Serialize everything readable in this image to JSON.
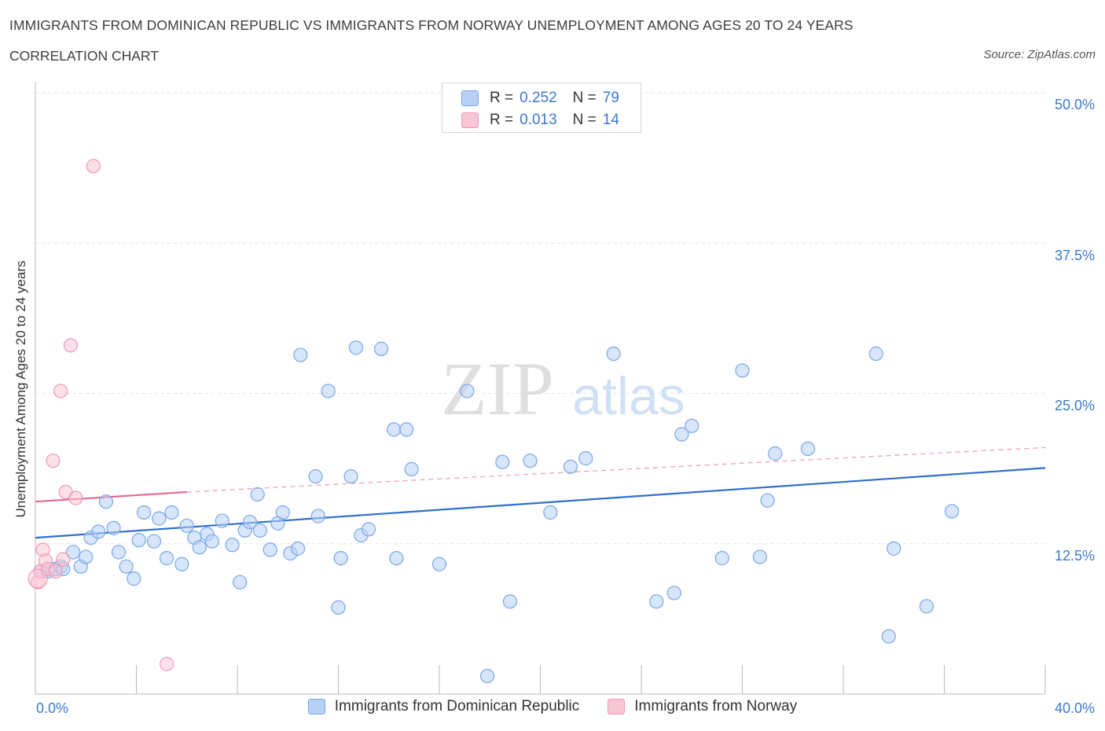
{
  "header": {
    "title": "IMMIGRANTS FROM DOMINICAN REPUBLIC VS IMMIGRANTS FROM NORWAY UNEMPLOYMENT AMONG AGES 20 TO 24 YEARS",
    "subtitle": "CORRELATION CHART",
    "source": "Source: ZipAtlas.com"
  },
  "watermark": {
    "zip": "ZIP",
    "atlas": "atlas"
  },
  "legend": {
    "r_label": "R =",
    "n_label": "N =",
    "rows": [
      {
        "r": "0.252",
        "n": "79",
        "fill": "#b7d1f5",
        "stroke": "#7aa6e6"
      },
      {
        "r": "0.013",
        "n": "14",
        "fill": "#f8c6d4",
        "stroke": "#ee9ab4"
      }
    ]
  },
  "axis": {
    "ylabel": "Unemployment Among Ages 20 to 24 years",
    "x_min_label": "0.0%",
    "x_max_label": "40.0%",
    "y_ticks": [
      "12.5%",
      "25.0%",
      "37.5%",
      "50.0%"
    ]
  },
  "chart_data": {
    "type": "scatter",
    "title": "IMMIGRANTS FROM DOMINICAN REPUBLIC VS IMMIGRANTS FROM NORWAY UNEMPLOYMENT AMONG AGES 20 TO 24 YEARS",
    "xlabel": "",
    "ylabel": "Unemployment Among Ages 20 to 24 years",
    "xlim": [
      0,
      40
    ],
    "ylim": [
      0,
      50
    ],
    "y_ticks": [
      12.5,
      25,
      37.5,
      50
    ],
    "grid": true,
    "legend_position": "top-center",
    "series": [
      {
        "name": "Immigrants from Dominican Republic",
        "color": "#7aa6e6",
        "fill": "#b7d1f5",
        "points": [
          [
            0.2,
            10.2
          ],
          [
            0.5,
            10.2
          ],
          [
            0.8,
            10.4
          ],
          [
            1.0,
            10.6
          ],
          [
            1.1,
            10.4
          ],
          [
            1.5,
            11.8
          ],
          [
            1.8,
            10.6
          ],
          [
            2.0,
            11.4
          ],
          [
            2.2,
            13.0
          ],
          [
            2.5,
            13.5
          ],
          [
            2.8,
            16.0
          ],
          [
            3.1,
            13.8
          ],
          [
            3.3,
            11.8
          ],
          [
            3.6,
            10.6
          ],
          [
            3.9,
            9.6
          ],
          [
            4.1,
            12.8
          ],
          [
            4.3,
            15.1
          ],
          [
            4.7,
            12.7
          ],
          [
            4.9,
            14.6
          ],
          [
            5.2,
            11.3
          ],
          [
            5.4,
            15.1
          ],
          [
            5.8,
            10.8
          ],
          [
            6.0,
            14.0
          ],
          [
            6.3,
            13.0
          ],
          [
            6.5,
            12.2
          ],
          [
            6.8,
            13.3
          ],
          [
            7.0,
            12.7
          ],
          [
            7.4,
            14.4
          ],
          [
            7.8,
            12.4
          ],
          [
            8.1,
            9.3
          ],
          [
            8.3,
            13.6
          ],
          [
            8.5,
            14.3
          ],
          [
            8.8,
            16.6
          ],
          [
            8.9,
            13.6
          ],
          [
            9.3,
            12.0
          ],
          [
            9.6,
            14.2
          ],
          [
            9.8,
            15.1
          ],
          [
            10.1,
            11.7
          ],
          [
            10.4,
            12.1
          ],
          [
            10.5,
            28.2
          ],
          [
            11.1,
            18.1
          ],
          [
            11.2,
            14.8
          ],
          [
            11.6,
            25.2
          ],
          [
            12.0,
            7.2
          ],
          [
            12.1,
            11.3
          ],
          [
            12.5,
            18.1
          ],
          [
            12.7,
            28.8
          ],
          [
            12.9,
            13.2
          ],
          [
            13.2,
            13.7
          ],
          [
            13.7,
            28.7
          ],
          [
            14.2,
            22.0
          ],
          [
            14.3,
            11.3
          ],
          [
            14.7,
            22.0
          ],
          [
            14.9,
            18.7
          ],
          [
            16.0,
            10.8
          ],
          [
            17.1,
            25.2
          ],
          [
            17.9,
            1.5
          ],
          [
            18.5,
            19.3
          ],
          [
            18.8,
            7.7
          ],
          [
            19.6,
            19.4
          ],
          [
            20.4,
            15.1
          ],
          [
            21.2,
            18.9
          ],
          [
            21.8,
            19.6
          ],
          [
            22.9,
            28.3
          ],
          [
            24.6,
            7.7
          ],
          [
            25.3,
            8.4
          ],
          [
            25.6,
            21.6
          ],
          [
            26.0,
            22.3
          ],
          [
            27.2,
            11.3
          ],
          [
            28.0,
            26.9
          ],
          [
            28.7,
            11.4
          ],
          [
            29.0,
            16.1
          ],
          [
            29.3,
            20.0
          ],
          [
            30.6,
            20.4
          ],
          [
            33.3,
            28.3
          ],
          [
            33.8,
            4.8
          ],
          [
            34.0,
            12.1
          ],
          [
            35.3,
            7.3
          ],
          [
            36.3,
            15.2
          ]
        ],
        "trendline": {
          "x0": 0,
          "y0": 13.0,
          "x1": 40,
          "y1": 18.8
        }
      },
      {
        "name": "Immigrants from Norway",
        "color": "#ee9ab4",
        "fill": "#f8c6d4",
        "points": [
          [
            0.1,
            9.3
          ],
          [
            0.2,
            10.2
          ],
          [
            0.3,
            12.0
          ],
          [
            0.4,
            11.1
          ],
          [
            0.5,
            10.4
          ],
          [
            0.7,
            19.4
          ],
          [
            0.8,
            10.2
          ],
          [
            1.0,
            25.2
          ],
          [
            1.1,
            11.2
          ],
          [
            1.2,
            16.8
          ],
          [
            1.4,
            29.0
          ],
          [
            1.6,
            16.3
          ],
          [
            2.3,
            43.9
          ],
          [
            5.2,
            2.5
          ]
        ],
        "trendline": {
          "x0": 0,
          "y0": 16.0,
          "x1": 6.0,
          "y1": 16.8,
          "dashed_extension_to": [
            40,
            20.5
          ]
        }
      }
    ]
  }
}
